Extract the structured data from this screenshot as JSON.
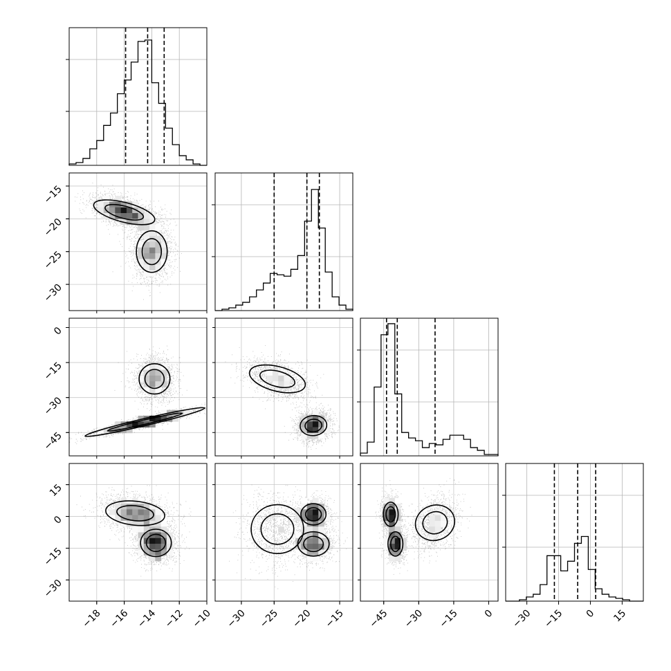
{
  "chart_data": {
    "type": "corner",
    "n_params": 4,
    "grid": true,
    "parameters": [
      {
        "index": 0,
        "range": [
          -20,
          -10
        ],
        "ticks": [
          -18,
          -16,
          -14,
          -12,
          -10
        ],
        "tick_labels": [
          "−18",
          "−16",
          "−14",
          "−12",
          "−10"
        ],
        "quantiles": [
          -15.9,
          -14.3,
          -13.1
        ]
      },
      {
        "index": 1,
        "range": [
          -34,
          -13
        ],
        "ticks": [
          -30,
          -25,
          -20,
          -15
        ],
        "tick_labels": [
          "−30",
          "−25",
          "−20",
          "−15"
        ],
        "quantiles": [
          -25.0,
          -20.0,
          -18.1
        ]
      },
      {
        "index": 2,
        "range": [
          -55,
          4
        ],
        "ticks": [
          -45,
          -30,
          -15,
          0
        ],
        "tick_labels": [
          "−45",
          "−30",
          "−15",
          "0"
        ],
        "quantiles": [
          -43.8,
          -39.2,
          -23.0
        ]
      },
      {
        "index": 3,
        "range": [
          -40,
          25
        ],
        "ticks": [
          -30,
          -15,
          0,
          15
        ],
        "tick_labels": [
          "−30",
          "−15",
          "0",
          "15"
        ],
        "quantiles": [
          -17.0,
          -6.0,
          2.5
        ]
      }
    ],
    "histograms": [
      {
        "param": 0,
        "bin_range": [
          -20,
          -10
        ],
        "counts": [
          0.01,
          0.02,
          0.05,
          0.12,
          0.18,
          0.29,
          0.38,
          0.52,
          0.62,
          0.75,
          0.9,
          0.91,
          0.6,
          0.45,
          0.27,
          0.15,
          0.07,
          0.04,
          0.01,
          0.0
        ]
      },
      {
        "param": 1,
        "bin_range": [
          -34,
          -13
        ],
        "counts": [
          0.0,
          0.01,
          0.02,
          0.04,
          0.06,
          0.1,
          0.15,
          0.2,
          0.27,
          0.26,
          0.25,
          0.3,
          0.4,
          0.65,
          0.88,
          0.6,
          0.28,
          0.1,
          0.04,
          0.01
        ]
      },
      {
        "param": 2,
        "bin_range": [
          -55,
          4
        ],
        "counts": [
          0.02,
          0.1,
          0.5,
          0.88,
          0.96,
          0.45,
          0.17,
          0.13,
          0.11,
          0.06,
          0.09,
          0.08,
          0.12,
          0.15,
          0.15,
          0.12,
          0.06,
          0.04,
          0.01,
          0.01
        ]
      },
      {
        "param": 3,
        "bin_range": [
          -40,
          25
        ],
        "counts": [
          0.0,
          0.0,
          0.01,
          0.03,
          0.05,
          0.12,
          0.33,
          0.33,
          0.22,
          0.29,
          0.42,
          0.47,
          0.23,
          0.09,
          0.05,
          0.03,
          0.02,
          0.01,
          0.0,
          0.0
        ]
      }
    ],
    "panels_2d": [
      {
        "x_param": 0,
        "y_param": 1,
        "modes": [
          {
            "x": -16.0,
            "y": -19.0,
            "sx": 1.1,
            "sy": 1.2,
            "rho": -0.5,
            "w": 0.55
          },
          {
            "x": -14.0,
            "y": -25.0,
            "sx": 0.7,
            "sy": 2.2,
            "rho": 0.0,
            "w": 0.45
          }
        ]
      },
      {
        "x_param": 0,
        "y_param": 2,
        "modes": [
          {
            "x": -14.5,
            "y": -40.5,
            "sx": 1.8,
            "sy": 2.7,
            "rho": 0.92,
            "w": 0.6
          },
          {
            "x": -13.8,
            "y": -22.0,
            "sx": 0.7,
            "sy": 4.5,
            "rho": 0.0,
            "w": 0.4
          }
        ]
      },
      {
        "x_param": 1,
        "y_param": 2,
        "modes": [
          {
            "x": -24.5,
            "y": -22.0,
            "sx": 2.2,
            "sy": 4.0,
            "rho": -0.4,
            "w": 0.4
          },
          {
            "x": -19.0,
            "y": -42.0,
            "sx": 1.2,
            "sy": 3.0,
            "rho": 0.1,
            "w": 0.6
          }
        ]
      },
      {
        "x_param": 0,
        "y_param": 3,
        "modes": [
          {
            "x": -15.2,
            "y": 1.5,
            "sx": 1.2,
            "sy": 4.0,
            "rho": -0.2,
            "w": 0.5
          },
          {
            "x": -13.7,
            "y": -12.5,
            "sx": 0.7,
            "sy": 4.5,
            "rho": 0.0,
            "w": 0.5
          }
        ]
      },
      {
        "x_param": 1,
        "y_param": 3,
        "modes": [
          {
            "x": -19.0,
            "y": 1.0,
            "sx": 1.2,
            "sy": 3.5,
            "rho": 0.0,
            "w": 0.35
          },
          {
            "x": -19.0,
            "y": -13.0,
            "sx": 1.5,
            "sy": 4.0,
            "rho": 0.0,
            "w": 0.35
          },
          {
            "x": -24.5,
            "y": -6.0,
            "sx": 2.5,
            "sy": 8.0,
            "rho": 0.0,
            "w": 0.3
          }
        ]
      },
      {
        "x_param": 2,
        "y_param": 3,
        "modes": [
          {
            "x": -42.0,
            "y": 1.0,
            "sx": 2.0,
            "sy": 4.0,
            "rho": 0.0,
            "w": 0.35
          },
          {
            "x": -40.0,
            "y": -13.0,
            "sx": 2.0,
            "sy": 4.0,
            "rho": 0.0,
            "w": 0.35
          },
          {
            "x": -23.0,
            "y": -3.0,
            "sx": 4.5,
            "sy": 6.0,
            "rho": 0.3,
            "w": 0.3
          }
        ]
      }
    ]
  }
}
